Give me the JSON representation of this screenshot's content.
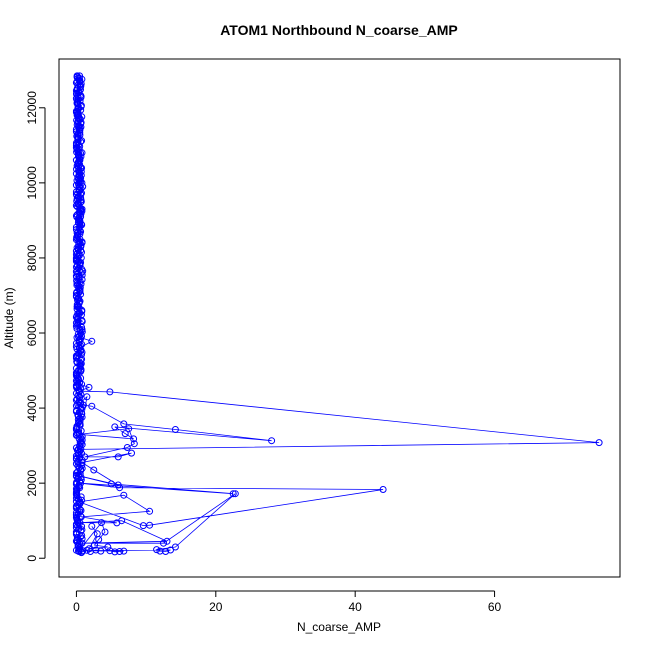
{
  "chart_data": {
    "type": "line",
    "title": "ATOM1 Northbound N_coarse_AMP",
    "xlabel": "N_coarse_AMP",
    "ylabel": "Altitude (m)",
    "xlim": [
      -2.5,
      78
    ],
    "ylim": [
      -500,
      13300
    ],
    "xticks": [
      "0",
      "20",
      "40",
      "60"
    ],
    "yticks": [
      "0",
      "2000",
      "4000",
      "6000",
      "8000",
      "10000",
      "12000"
    ],
    "xtick_values": [
      0,
      20,
      40,
      60
    ],
    "ytick_values": [
      0,
      2000,
      4000,
      6000,
      8000,
      10000,
      12000
    ],
    "grid": false,
    "marker": "open-circle",
    "colors": {
      "series": "#0000ff",
      "axes": "#000000",
      "background": "#ffffff"
    },
    "series": [
      {
        "name": "",
        "points": [
          [
            0.1,
            12850
          ],
          [
            0.1,
            12820
          ],
          [
            0.2,
            12780
          ],
          [
            0.1,
            12700
          ],
          [
            0.2,
            12600
          ],
          [
            0.1,
            12500
          ],
          [
            0.3,
            12400
          ],
          [
            0.2,
            12300
          ],
          [
            0.1,
            12200
          ],
          [
            0.2,
            12100
          ],
          [
            0.3,
            12000
          ],
          [
            0.2,
            11900
          ],
          [
            0.1,
            11800
          ],
          [
            0.4,
            11700
          ],
          [
            0.2,
            11600
          ],
          [
            0.3,
            11500
          ],
          [
            0.5,
            11400
          ],
          [
            0.2,
            11300
          ],
          [
            0.3,
            11200
          ],
          [
            0.6,
            11100
          ],
          [
            0.3,
            11000
          ],
          [
            0.4,
            10900
          ],
          [
            0.8,
            10800
          ],
          [
            0.3,
            10700
          ],
          [
            0.5,
            10600
          ],
          [
            0.2,
            10500
          ],
          [
            0.6,
            10400
          ],
          [
            0.4,
            10300
          ],
          [
            0.7,
            10200
          ],
          [
            0.3,
            10100
          ],
          [
            0.5,
            10000
          ],
          [
            0.9,
            9900
          ],
          [
            0.4,
            9800
          ],
          [
            0.6,
            9700
          ],
          [
            0.3,
            9600
          ],
          [
            0.7,
            9500
          ],
          [
            0.4,
            9400
          ],
          [
            0.8,
            9300
          ],
          [
            0.5,
            9200
          ],
          [
            0.6,
            9100
          ],
          [
            0.3,
            9000
          ],
          [
            0.7,
            8900
          ],
          [
            0.4,
            8800
          ],
          [
            0.6,
            8700
          ],
          [
            0.2,
            8600
          ],
          [
            0.5,
            8500
          ],
          [
            0.8,
            8400
          ],
          [
            0.3,
            8300
          ],
          [
            0.6,
            8200
          ],
          [
            0.4,
            8100
          ],
          [
            0.7,
            8000
          ],
          [
            0.3,
            7900
          ],
          [
            0.5,
            7800
          ],
          [
            0.9,
            7650
          ],
          [
            0.4,
            7500
          ],
          [
            0.2,
            7300
          ],
          [
            0.5,
            7100
          ],
          [
            0.3,
            6900
          ],
          [
            0.1,
            6700
          ],
          [
            0.4,
            6500
          ],
          [
            0.2,
            6300
          ],
          [
            0.5,
            6100
          ],
          [
            0.3,
            5900
          ],
          [
            2.2,
            5780
          ],
          [
            0.4,
            5600
          ],
          [
            0.2,
            5400
          ],
          [
            0.5,
            5200
          ],
          [
            0.3,
            5000
          ],
          [
            0.6,
            4800
          ],
          [
            0.2,
            4650
          ],
          [
            1.8,
            4550
          ],
          [
            0.4,
            4450
          ],
          [
            4.8,
            4430
          ],
          [
            75.0,
            3080
          ],
          [
            0.3,
            2900
          ],
          [
            1.5,
            4300
          ],
          [
            0.6,
            4150
          ],
          [
            1.0,
            4080
          ],
          [
            2.2,
            4050
          ],
          [
            6.8,
            3580
          ],
          [
            14.2,
            3430
          ],
          [
            28.0,
            3130
          ],
          [
            5.5,
            3500
          ],
          [
            7.0,
            3320
          ],
          [
            8.2,
            3180
          ],
          [
            0.4,
            3300
          ],
          [
            7.5,
            3450
          ],
          [
            8.3,
            3050
          ],
          [
            7.3,
            2950
          ],
          [
            1.2,
            2700
          ],
          [
            6.0,
            2700
          ],
          [
            7.9,
            2800
          ],
          [
            0.8,
            2550
          ],
          [
            2.5,
            2350
          ],
          [
            6.0,
            1950
          ],
          [
            0.3,
            2200
          ],
          [
            5.0,
            1980
          ],
          [
            22.5,
            1720
          ],
          [
            0.6,
            2000
          ],
          [
            6.2,
            1880
          ],
          [
            44.0,
            1830
          ],
          [
            10.5,
            880
          ],
          [
            9.6,
            870
          ],
          [
            0.4,
            1500
          ],
          [
            6.8,
            1680
          ],
          [
            10.5,
            1250
          ],
          [
            0.7,
            1100
          ],
          [
            5.8,
            940
          ],
          [
            0.5,
            950
          ],
          [
            6.5,
            1000
          ],
          [
            13.0,
            450
          ],
          [
            0.8,
            400
          ],
          [
            12.5,
            400
          ],
          [
            22.8,
            1720
          ],
          [
            14.2,
            300
          ],
          [
            11.5,
            230
          ],
          [
            12.0,
            190
          ],
          [
            12.8,
            180
          ],
          [
            13.5,
            220
          ],
          [
            0.9,
            200
          ],
          [
            6.8,
            190
          ],
          [
            6.2,
            180
          ],
          [
            5.5,
            170
          ],
          [
            4.8,
            200
          ],
          [
            3.5,
            190
          ],
          [
            2.8,
            220
          ],
          [
            2.0,
            180
          ],
          [
            1.5,
            210
          ],
          [
            0.8,
            170
          ],
          [
            0.3,
            190
          ],
          [
            3.6,
            950
          ],
          [
            4.1,
            700
          ],
          [
            3.2,
            500
          ],
          [
            2.6,
            350
          ],
          [
            4.5,
            300
          ],
          [
            1.8,
            250
          ],
          [
            3.0,
            650
          ],
          [
            2.2,
            850
          ]
        ]
      }
    ],
    "dense_column": {
      "x_center": 0.3,
      "x_spread": 0.55,
      "y_min": 150,
      "y_max": 12850,
      "count": 420
    }
  }
}
